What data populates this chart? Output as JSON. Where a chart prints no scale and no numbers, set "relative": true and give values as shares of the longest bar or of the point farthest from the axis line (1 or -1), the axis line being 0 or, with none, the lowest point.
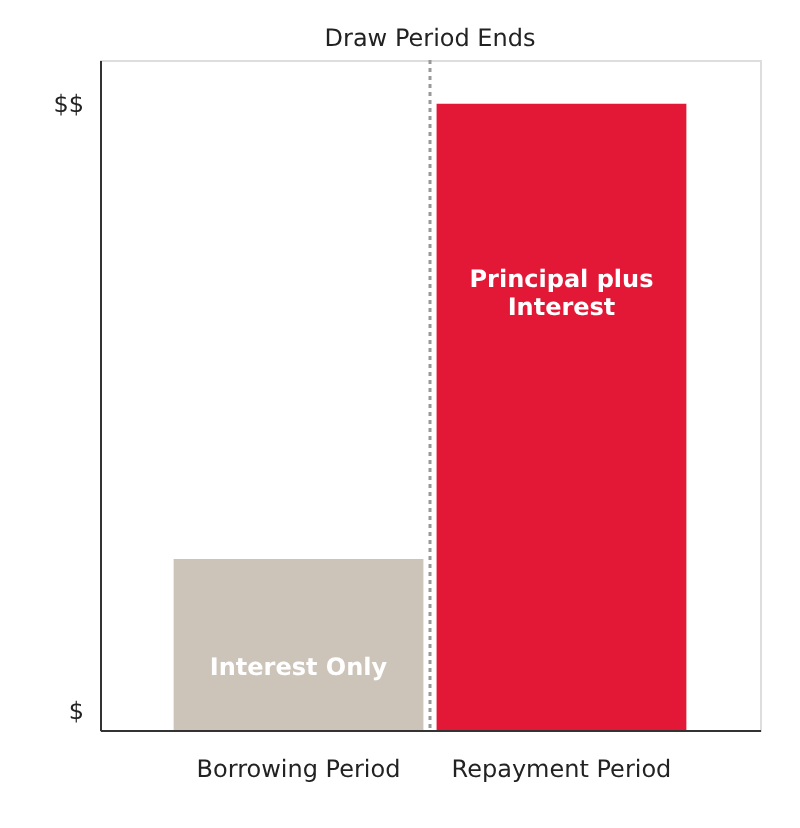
{
  "chart_data": {
    "type": "bar",
    "relative": true,
    "categories": [
      "Borrowing Period",
      "Repayment Period"
    ],
    "values": [
      0.273,
      1
    ],
    "colors": [
      "#cdc4b9",
      "#e31837"
    ],
    "annotations": [
      "$$",
      "$",
      "Interest Only",
      "Principal plus Interest"
    ],
    "ref_lines": [
      {
        "axis": "x",
        "label": "Draw Period Ends",
        "line_style": "dotted",
        "color": "#999999"
      }
    ],
    "grid": false
  }
}
